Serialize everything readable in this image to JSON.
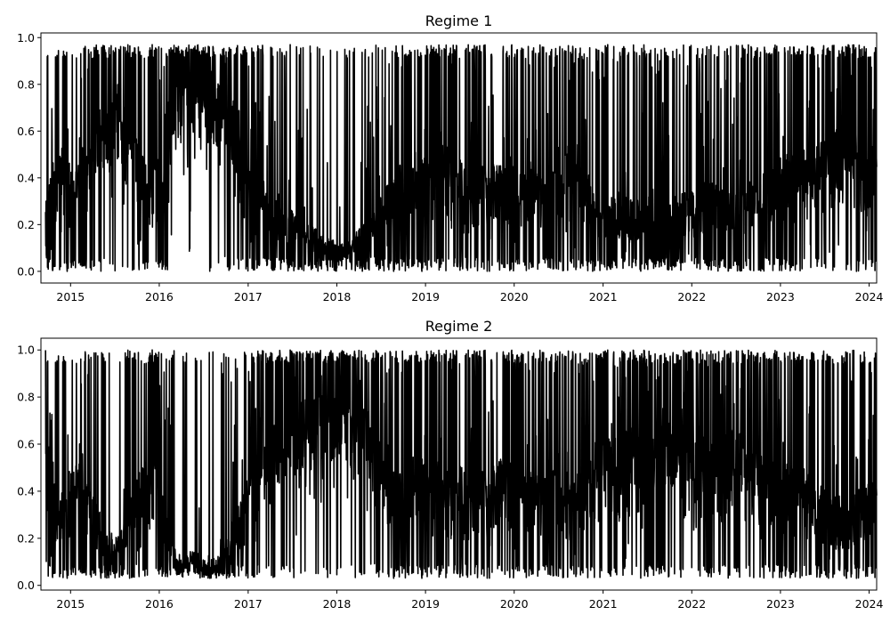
{
  "chart_data": [
    {
      "type": "line",
      "title": "Regime 1",
      "xlabel": "",
      "ylabel": "",
      "x_range": [
        "2014-09-01",
        "2024-02-01"
      ],
      "x_ticks": [
        "2015",
        "2016",
        "2017",
        "2018",
        "2019",
        "2020",
        "2021",
        "2022",
        "2023",
        "2024"
      ],
      "ylim": [
        -0.05,
        1.02
      ],
      "y_ticks": [
        "0.0",
        "0.2",
        "0.4",
        "0.6",
        "0.8",
        "1.0"
      ],
      "grid": false,
      "line_color": "#000000",
      "series": [
        {
          "values": [
            [
              "2014-09",
              0.3
            ],
            [
              "2014-11",
              0.6
            ],
            [
              "2015-01",
              0.45
            ],
            [
              "2015-03",
              0.55
            ],
            [
              "2015-05",
              0.75
            ],
            [
              "2015-07",
              0.8
            ],
            [
              "2015-09",
              0.6
            ],
            [
              "2015-11",
              0.45
            ],
            [
              "2016-01",
              0.5
            ],
            [
              "2016-03",
              0.9
            ],
            [
              "2016-05",
              0.85
            ],
            [
              "2016-07",
              0.9
            ],
            [
              "2016-09",
              0.85
            ],
            [
              "2016-11",
              0.7
            ],
            [
              "2017-01",
              0.45
            ],
            [
              "2017-03",
              0.35
            ],
            [
              "2017-05",
              0.3
            ],
            [
              "2017-07",
              0.25
            ],
            [
              "2017-09",
              0.2
            ],
            [
              "2017-11",
              0.15
            ],
            [
              "2018-01",
              0.12
            ],
            [
              "2018-03",
              0.15
            ],
            [
              "2018-05",
              0.25
            ],
            [
              "2018-07",
              0.35
            ],
            [
              "2018-09",
              0.5
            ],
            [
              "2018-11",
              0.45
            ],
            [
              "2019-01",
              0.5
            ],
            [
              "2019-03",
              0.55
            ],
            [
              "2019-05",
              0.5
            ],
            [
              "2019-07",
              0.45
            ],
            [
              "2019-09",
              0.5
            ],
            [
              "2019-11",
              0.45
            ],
            [
              "2020-01",
              0.45
            ],
            [
              "2020-03",
              0.5
            ],
            [
              "2020-05",
              0.45
            ],
            [
              "2020-07",
              0.5
            ],
            [
              "2020-09",
              0.55
            ],
            [
              "2020-11",
              0.4
            ],
            [
              "2021-01",
              0.3
            ],
            [
              "2021-03",
              0.35
            ],
            [
              "2021-05",
              0.3
            ],
            [
              "2021-07",
              0.35
            ],
            [
              "2021-09",
              0.3
            ],
            [
              "2021-11",
              0.35
            ],
            [
              "2022-01",
              0.35
            ],
            [
              "2022-03",
              0.4
            ],
            [
              "2022-05",
              0.35
            ],
            [
              "2022-07",
              0.35
            ],
            [
              "2022-09",
              0.4
            ],
            [
              "2022-11",
              0.45
            ],
            [
              "2023-01",
              0.5
            ],
            [
              "2023-03",
              0.5
            ],
            [
              "2023-05",
              0.55
            ],
            [
              "2023-07",
              0.6
            ],
            [
              "2023-09",
              0.65
            ],
            [
              "2023-11",
              0.6
            ],
            [
              "2024-01",
              0.55
            ]
          ],
          "min": 0.0,
          "max": 0.97
        }
      ]
    },
    {
      "type": "line",
      "title": "Regime 2",
      "xlabel": "",
      "ylabel": "",
      "x_range": [
        "2014-09-01",
        "2024-02-01"
      ],
      "x_ticks": [
        "2015",
        "2016",
        "2017",
        "2018",
        "2019",
        "2020",
        "2021",
        "2022",
        "2023",
        "2024"
      ],
      "ylim": [
        -0.02,
        1.05
      ],
      "y_ticks": [
        "0.0",
        "0.2",
        "0.4",
        "0.6",
        "0.8",
        "1.0"
      ],
      "grid": false,
      "line_color": "#000000",
      "series": [
        {
          "values": [
            [
              "2014-09",
              0.7
            ],
            [
              "2014-11",
              0.4
            ],
            [
              "2015-01",
              0.55
            ],
            [
              "2015-03",
              0.45
            ],
            [
              "2015-05",
              0.25
            ],
            [
              "2015-07",
              0.2
            ],
            [
              "2015-09",
              0.4
            ],
            [
              "2015-11",
              0.55
            ],
            [
              "2016-01",
              0.5
            ],
            [
              "2016-03",
              0.1
            ],
            [
              "2016-05",
              0.15
            ],
            [
              "2016-07",
              0.1
            ],
            [
              "2016-09",
              0.15
            ],
            [
              "2016-11",
              0.3
            ],
            [
              "2017-01",
              0.55
            ],
            [
              "2017-03",
              0.65
            ],
            [
              "2017-05",
              0.7
            ],
            [
              "2017-07",
              0.75
            ],
            [
              "2017-09",
              0.8
            ],
            [
              "2017-11",
              0.85
            ],
            [
              "2018-01",
              0.88
            ],
            [
              "2018-03",
              0.85
            ],
            [
              "2018-05",
              0.75
            ],
            [
              "2018-07",
              0.65
            ],
            [
              "2018-09",
              0.5
            ],
            [
              "2018-11",
              0.55
            ],
            [
              "2019-01",
              0.5
            ],
            [
              "2019-03",
              0.45
            ],
            [
              "2019-05",
              0.5
            ],
            [
              "2019-07",
              0.55
            ],
            [
              "2019-09",
              0.5
            ],
            [
              "2019-11",
              0.55
            ],
            [
              "2020-01",
              0.55
            ],
            [
              "2020-03",
              0.5
            ],
            [
              "2020-05",
              0.55
            ],
            [
              "2020-07",
              0.5
            ],
            [
              "2020-09",
              0.45
            ],
            [
              "2020-11",
              0.6
            ],
            [
              "2021-01",
              0.7
            ],
            [
              "2021-03",
              0.65
            ],
            [
              "2021-05",
              0.7
            ],
            [
              "2021-07",
              0.65
            ],
            [
              "2021-09",
              0.7
            ],
            [
              "2021-11",
              0.65
            ],
            [
              "2022-01",
              0.65
            ],
            [
              "2022-03",
              0.6
            ],
            [
              "2022-05",
              0.65
            ],
            [
              "2022-07",
              0.65
            ],
            [
              "2022-09",
              0.6
            ],
            [
              "2022-11",
              0.55
            ],
            [
              "2023-01",
              0.5
            ],
            [
              "2023-03",
              0.5
            ],
            [
              "2023-05",
              0.45
            ],
            [
              "2023-07",
              0.4
            ],
            [
              "2023-09",
              0.35
            ],
            [
              "2023-11",
              0.4
            ],
            [
              "2024-01",
              0.45
            ]
          ],
          "min": 0.03,
          "max": 1.0
        }
      ]
    }
  ]
}
